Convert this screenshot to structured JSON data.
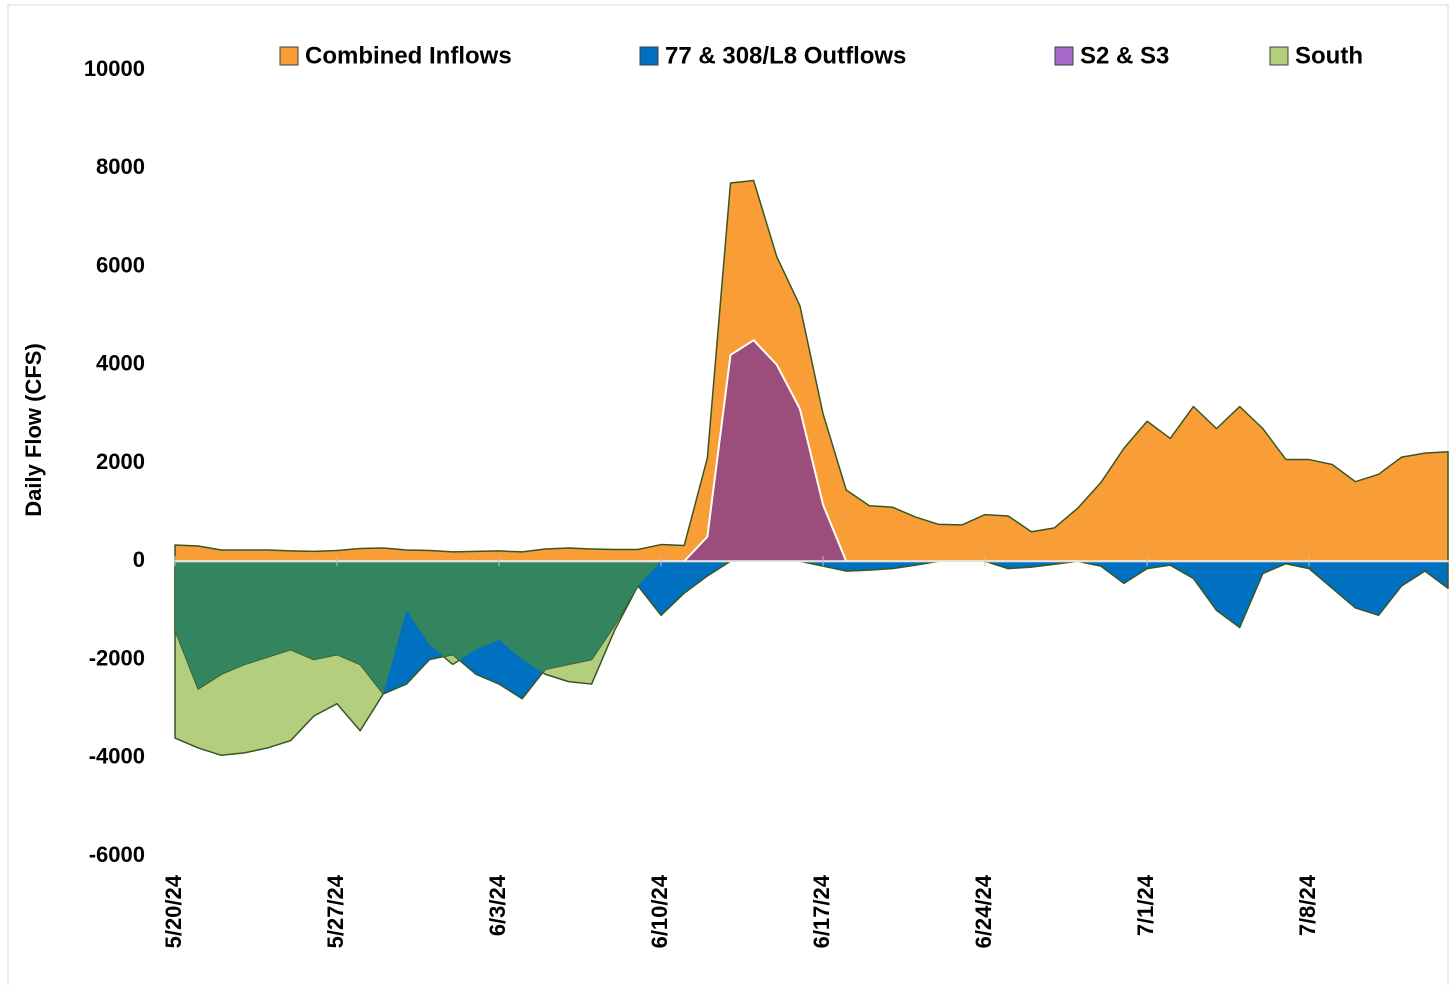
{
  "chart_data": {
    "type": "area",
    "y_label": "Daily Flow (CFS)",
    "categories": [
      "5/20/24",
      null,
      null,
      null,
      null,
      null,
      null,
      "5/27/24",
      null,
      null,
      null,
      null,
      null,
      null,
      "6/3/24",
      null,
      null,
      null,
      null,
      null,
      null,
      "6/10/24",
      null,
      null,
      null,
      null,
      null,
      null,
      "6/17/24",
      null,
      null,
      null,
      null,
      null,
      null,
      "6/24/24",
      null,
      null,
      null,
      null,
      null,
      null,
      "7/1/24",
      null,
      null,
      null,
      null,
      null,
      null,
      "7/8/24",
      null,
      null,
      null,
      null,
      null,
      null
    ],
    "series": [
      {
        "name": "Combined Inflows",
        "color": "#F99D36",
        "values": [
          330,
          310,
          230,
          230,
          230,
          210,
          200,
          220,
          260,
          270,
          230,
          220,
          190,
          200,
          210,
          190,
          250,
          270,
          250,
          240,
          240,
          340,
          320,
          2100,
          7700,
          7750,
          6200,
          5200,
          3000,
          1450,
          1130,
          1100,
          900,
          750,
          740,
          950,
          920,
          600,
          680,
          1080,
          1600,
          2300,
          2850,
          2500,
          3150,
          2700,
          3150,
          2700,
          2070,
          2070,
          1970,
          1620,
          1770,
          2120,
          2200,
          2230
        ]
      },
      {
        "name": "77 & 308/L8 Outflows",
        "color": "#0070C0",
        "values": [
          -1400,
          -2600,
          -2300,
          -2100,
          -1950,
          -1800,
          -2000,
          -1900,
          -2100,
          -2700,
          -2500,
          -2000,
          -1900,
          -2300,
          -2500,
          -2800,
          -2200,
          -2100,
          -2000,
          -1300,
          -500,
          -1100,
          -650,
          -300,
          0,
          0,
          0,
          0,
          -100,
          -200,
          -180,
          -150,
          -80,
          0,
          0,
          0,
          -150,
          -120,
          -60,
          0,
          -100,
          -450,
          -150,
          -80,
          -350,
          -1000,
          -1350,
          -250,
          -50,
          -150,
          -550,
          -950,
          -1100,
          -500,
          -200,
          -550
        ]
      },
      {
        "name": "S2 & S3",
        "color": "#9B4D7C",
        "values": [
          0,
          0,
          0,
          0,
          0,
          0,
          0,
          0,
          0,
          0,
          0,
          0,
          0,
          0,
          0,
          0,
          0,
          0,
          0,
          0,
          0,
          0,
          0,
          500,
          4200,
          4500,
          4000,
          3100,
          1150,
          0,
          0,
          0,
          0,
          0,
          0,
          0,
          0,
          0,
          0,
          0,
          0,
          0,
          0,
          0,
          0,
          0,
          0,
          0,
          0,
          0,
          0,
          0,
          0,
          0,
          0,
          0
        ]
      },
      {
        "name": "South",
        "color": "#B3CE7D",
        "values": [
          -3600,
          -3800,
          -3950,
          -3900,
          -3800,
          -3650,
          -3150,
          -2900,
          -3450,
          -2700,
          -1000,
          -1700,
          -2100,
          -1800,
          -1600,
          -2000,
          -2300,
          -2450,
          -2500,
          -1400,
          -500,
          0,
          0,
          0,
          0,
          0,
          0,
          0,
          0,
          0,
          0,
          0,
          0,
          0,
          0,
          0,
          0,
          0,
          0,
          0,
          0,
          0,
          0,
          0,
          0,
          0,
          0,
          0,
          0,
          0,
          0,
          0,
          0,
          0,
          0,
          0
        ]
      }
    ],
    "overlap_color": "#338560",
    "ylim": [
      -6000,
      10000
    ],
    "yticks": [
      -6000,
      -4000,
      -2000,
      0,
      2000,
      4000,
      6000,
      8000,
      10000
    ],
    "legend": "top"
  }
}
